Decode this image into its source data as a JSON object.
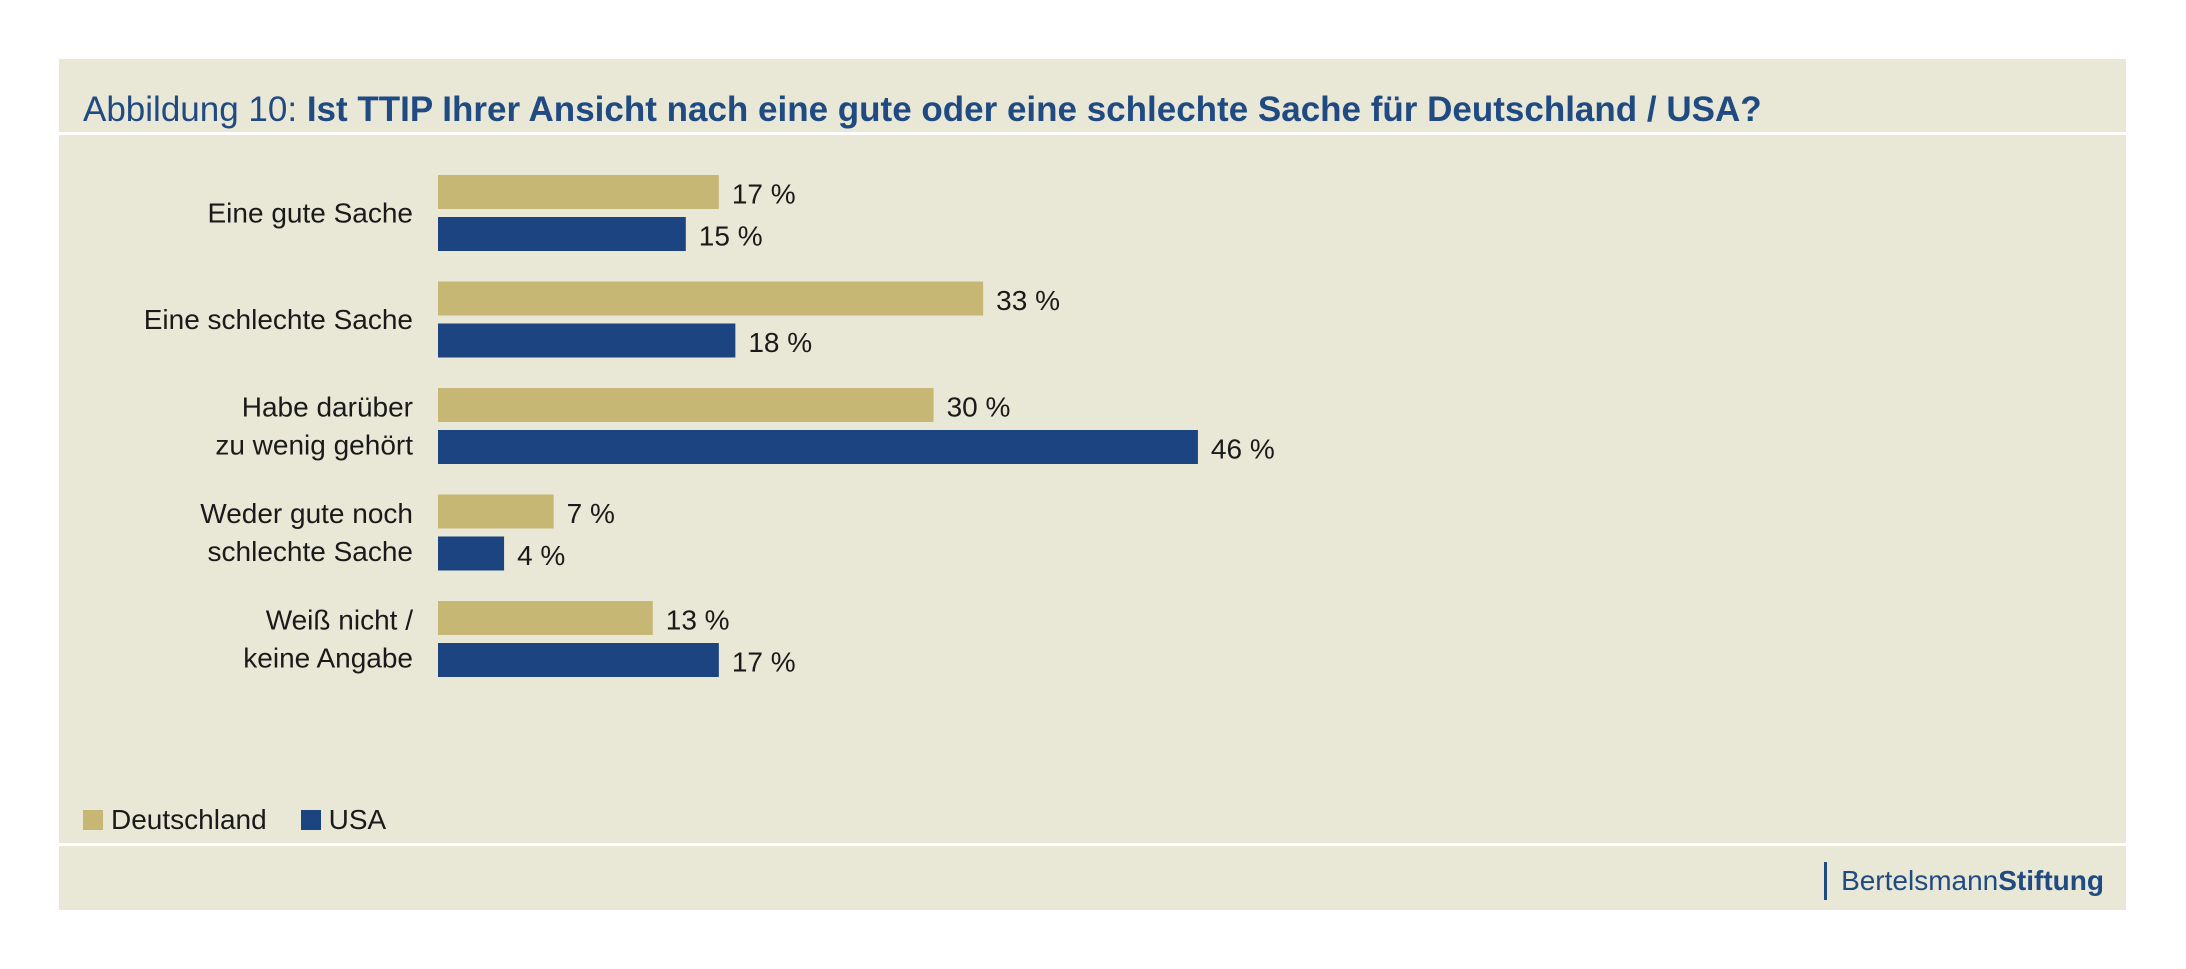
{
  "figure": {
    "title_prefix": "Abbildung 10:",
    "title_main": "Ist TTIP Ihrer Ansicht nach eine gute oder eine schlechte Sache für Deutschland / USA?"
  },
  "colors": {
    "panel": "#e9e7d6",
    "deutschland": "#c6b774",
    "usa": "#1c4481"
  },
  "chart_data": {
    "type": "bar",
    "orientation": "horizontal",
    "categories": [
      [
        "Eine gute Sache"
      ],
      [
        "Eine schlechte Sache"
      ],
      [
        "Habe darüber",
        "zu wenig gehört"
      ],
      [
        "Weder gute noch",
        "schlechte Sache"
      ],
      [
        "Weiß nicht /",
        "keine Angabe"
      ]
    ],
    "series": [
      {
        "name": "Deutschland",
        "color": "#c6b774",
        "values": [
          17,
          33,
          30,
          7,
          13
        ]
      },
      {
        "name": "USA",
        "color": "#1c4481",
        "values": [
          15,
          18,
          46,
          4,
          17
        ]
      }
    ],
    "value_suffix": " %",
    "legend_position": "bottom-left",
    "grid": false
  },
  "legend": {
    "items": [
      "Deutschland",
      "USA"
    ]
  },
  "logo": {
    "part1": "Bertelsmann",
    "part2": "Stiftung"
  }
}
